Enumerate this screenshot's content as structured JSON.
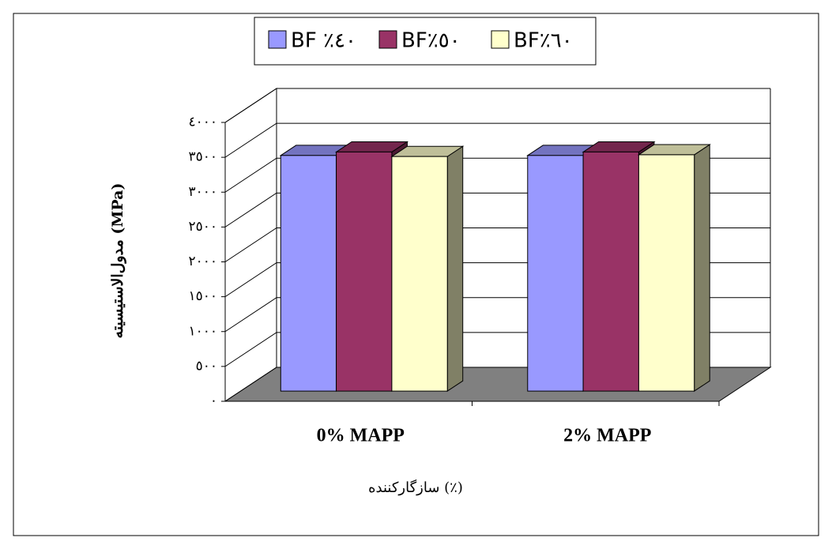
{
  "chart_data": {
    "type": "bar3d",
    "categories": [
      "0% MAPP",
      "2% MAPP"
    ],
    "series": [
      {
        "name": "BF ٪٤٠",
        "color": "#9999ff",
        "values": [
          3380,
          3380
        ]
      },
      {
        "name": "BF٪٥٠",
        "color": "#993366",
        "values": [
          3430,
          3430
        ]
      },
      {
        "name": "BF٪٦٠",
        "color": "#ffffcc",
        "values": [
          3365,
          3390
        ]
      }
    ],
    "y_label": "مدول‌الاستیسیته (MPa)",
    "x_label": "سازگارکننده (٪)",
    "ylim": [
      0,
      4000
    ],
    "yticks": [
      {
        "value": 0,
        "label": "٠"
      },
      {
        "value": 500,
        "label": "٥٠٠"
      },
      {
        "value": 1000,
        "label": "١٠٠٠"
      },
      {
        "value": 1500,
        "label": "١٥٠٠"
      },
      {
        "value": 2000,
        "label": "٢٠٠٠"
      },
      {
        "value": 2500,
        "label": "٢٥٠٠"
      },
      {
        "value": 3000,
        "label": "٣٠٠٠"
      },
      {
        "value": 3500,
        "label": "٣٥٠٠"
      },
      {
        "value": 4000,
        "label": "٤٠٠٠"
      }
    ],
    "grid": true,
    "legend": "top"
  }
}
